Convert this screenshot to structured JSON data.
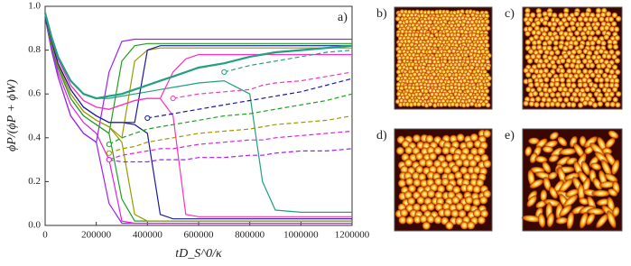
{
  "chart_data": {
    "type": "line",
    "panel_label": "a)",
    "xlabel": "tD_S^0/κ",
    "ylabel": "ϕP/(ϕP + ϕW)",
    "x": [
      0,
      25000,
      50000,
      100000,
      150000,
      200000,
      250000,
      300000,
      350000,
      400000,
      450000,
      500000,
      550000,
      600000,
      700000,
      800000,
      850000,
      900000,
      1000000,
      1100000,
      1200000
    ],
    "xlim": [
      0,
      1200000
    ],
    "xticks": [
      0,
      200000,
      400000,
      600000,
      800000,
      1000000,
      1200000
    ],
    "ylim": [
      0,
      1
    ],
    "yticks": [
      {
        "value": 0,
        "label": "0.0"
      },
      0.2,
      0.4,
      0.6,
      0.8,
      {
        "value": 1,
        "label": "1.0"
      }
    ],
    "series": [
      {
        "color": "#a020f0",
        "values": [
          0.95,
          0.8,
          0.68,
          0.5,
          0.42,
          0.38,
          0.1,
          0.01,
          0.01,
          0.01,
          0.01,
          0.01,
          0.01,
          0.01,
          0.01,
          0.01,
          0.01,
          0.01,
          0.01,
          0.01,
          0.01
        ]
      },
      {
        "color": "#e020e0",
        "values": [
          0.95,
          0.82,
          0.7,
          0.55,
          0.47,
          0.42,
          0.3,
          0.02,
          0.01,
          0.01,
          0.01,
          0.01,
          0.01,
          0.01,
          0.01,
          0.01,
          0.01,
          0.01,
          0.01,
          0.01,
          0.01
        ]
      },
      {
        "color": "#20a020",
        "values": [
          0.95,
          0.82,
          0.72,
          0.58,
          0.5,
          0.46,
          0.42,
          0.12,
          0.02,
          0.02,
          0.02,
          0.02,
          0.02,
          0.02,
          0.02,
          0.02,
          0.02,
          0.02,
          0.02,
          0.02,
          0.02
        ]
      },
      {
        "color": "#9a9a00",
        "values": [
          0.95,
          0.83,
          0.73,
          0.6,
          0.52,
          0.48,
          0.45,
          0.38,
          0.05,
          0.02,
          0.02,
          0.02,
          0.02,
          0.02,
          0.02,
          0.02,
          0.02,
          0.02,
          0.02,
          0.02,
          0.02
        ]
      },
      {
        "color": "#1a1aa0",
        "values": [
          0.95,
          0.84,
          0.74,
          0.62,
          0.54,
          0.5,
          0.47,
          0.47,
          0.46,
          0.42,
          0.05,
          0.03,
          0.03,
          0.03,
          0.03,
          0.03,
          0.03,
          0.03,
          0.03,
          0.03,
          0.03
        ]
      },
      {
        "color": "#ff30c0",
        "values": [
          0.96,
          0.85,
          0.76,
          0.64,
          0.57,
          0.54,
          0.53,
          0.55,
          0.57,
          0.58,
          0.58,
          0.5,
          0.05,
          0.04,
          0.04,
          0.04,
          0.04,
          0.04,
          0.04,
          0.04,
          0.04
        ]
      },
      {
        "color": "#20a080",
        "values": [
          0.97,
          0.86,
          0.77,
          0.66,
          0.6,
          0.58,
          0.58,
          0.59,
          0.6,
          0.61,
          0.62,
          0.63,
          0.64,
          0.65,
          0.66,
          0.6,
          0.2,
          0.07,
          0.06,
          0.06,
          0.06
        ]
      },
      {
        "color": "#a020f0",
        "values": [
          0.95,
          0.8,
          0.68,
          0.5,
          0.42,
          0.38,
          0.7,
          0.84,
          0.85,
          0.85,
          0.85,
          0.85,
          0.85,
          0.85,
          0.85,
          0.85,
          0.85,
          0.85,
          0.85,
          0.85,
          0.85
        ]
      },
      {
        "color": "#20a020",
        "values": [
          0.95,
          0.82,
          0.72,
          0.58,
          0.5,
          0.46,
          0.42,
          0.75,
          0.82,
          0.83,
          0.83,
          0.83,
          0.83,
          0.83,
          0.83,
          0.83,
          0.83,
          0.83,
          0.83,
          0.83,
          0.83
        ]
      },
      {
        "color": "#9a9a00",
        "values": [
          0.95,
          0.83,
          0.73,
          0.6,
          0.52,
          0.48,
          0.45,
          0.4,
          0.75,
          0.8,
          0.81,
          0.81,
          0.81,
          0.81,
          0.81,
          0.81,
          0.81,
          0.81,
          0.81,
          0.81,
          0.81
        ]
      },
      {
        "color": "#1a1aa0",
        "values": [
          0.95,
          0.84,
          0.74,
          0.62,
          0.54,
          0.5,
          0.47,
          0.47,
          0.47,
          0.8,
          0.82,
          0.82,
          0.82,
          0.82,
          0.82,
          0.82,
          0.82,
          0.82,
          0.82,
          0.82,
          0.82
        ]
      },
      {
        "color": "#ff30c0",
        "values": [
          0.96,
          0.85,
          0.76,
          0.64,
          0.57,
          0.54,
          0.53,
          0.55,
          0.57,
          0.58,
          0.58,
          0.7,
          0.76,
          0.78,
          0.78,
          0.78,
          0.78,
          0.78,
          0.78,
          0.78,
          0.78
        ]
      },
      {
        "color": "#20a080",
        "width": 2.2,
        "values": [
          0.97,
          0.86,
          0.77,
          0.66,
          0.6,
          0.58,
          0.59,
          0.6,
          0.62,
          0.64,
          0.66,
          0.68,
          0.7,
          0.72,
          0.74,
          0.77,
          0.78,
          0.79,
          0.8,
          0.81,
          0.82
        ]
      },
      {
        "color": "#a020f0",
        "dashed": true,
        "values": [
          null,
          null,
          null,
          null,
          null,
          null,
          0.3,
          0.29,
          0.29,
          0.29,
          0.3,
          0.3,
          0.3,
          0.31,
          0.31,
          0.32,
          0.32,
          0.33,
          0.34,
          0.34,
          0.35
        ]
      },
      {
        "color": "#e020e0",
        "dashed": true,
        "values": [
          null,
          null,
          null,
          null,
          null,
          null,
          0.3,
          0.32,
          0.33,
          0.34,
          0.35,
          0.35,
          0.36,
          0.37,
          0.38,
          0.39,
          0.39,
          0.4,
          0.41,
          0.42,
          0.43
        ]
      },
      {
        "color": "#9a9a00",
        "dashed": true,
        "values": [
          null,
          null,
          null,
          null,
          null,
          null,
          0.33,
          0.35,
          0.36,
          0.38,
          0.39,
          0.4,
          0.41,
          0.42,
          0.43,
          0.44,
          0.45,
          0.46,
          0.47,
          0.48,
          0.5
        ]
      },
      {
        "color": "#20a020",
        "dashed": true,
        "values": [
          null,
          null,
          null,
          null,
          null,
          null,
          0.37,
          0.4,
          0.42,
          0.44,
          0.45,
          0.46,
          0.47,
          0.48,
          0.5,
          0.51,
          0.52,
          0.53,
          0.55,
          0.57,
          0.6
        ]
      },
      {
        "color": "#1a1aa0",
        "dashed": true,
        "values": [
          null,
          null,
          null,
          null,
          null,
          null,
          null,
          null,
          null,
          0.49,
          0.5,
          0.51,
          0.52,
          0.53,
          0.55,
          0.57,
          0.58,
          0.59,
          0.61,
          0.64,
          0.67
        ]
      },
      {
        "color": "#ff30c0",
        "dashed": true,
        "values": [
          null,
          null,
          null,
          null,
          null,
          null,
          null,
          null,
          null,
          null,
          null,
          0.58,
          0.59,
          0.6,
          0.61,
          0.62,
          0.64,
          0.65,
          0.66,
          0.68,
          0.7
        ]
      },
      {
        "color": "#20a080",
        "dashed": true,
        "values": [
          null,
          null,
          null,
          null,
          null,
          null,
          null,
          null,
          null,
          null,
          null,
          null,
          null,
          null,
          0.7,
          0.73,
          0.74,
          0.75,
          0.77,
          0.79,
          0.8
        ]
      }
    ]
  },
  "panels": [
    {
      "label": "b)"
    },
    {
      "label": "c)"
    },
    {
      "label": "d)"
    },
    {
      "label": "e)"
    }
  ]
}
